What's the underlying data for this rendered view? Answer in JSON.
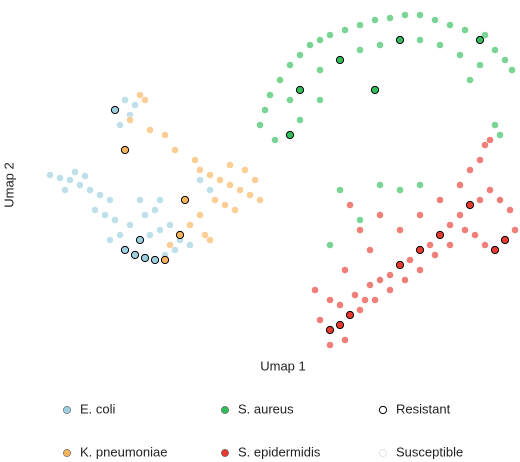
{
  "chart_data": {
    "type": "scatter",
    "xlabel": "Umap 1",
    "ylabel": "Umap 2",
    "xlim": [
      0,
      480
    ],
    "ylim": [
      0,
      355
    ],
    "series": [
      {
        "name": "E. coli",
        "color": "#9ccfe0",
        "x": [
          10,
          20,
          30,
          40,
          50,
          60,
          70,
          55,
          65,
          75,
          80,
          70,
          110,
          120,
          130,
          90,
          105,
          115,
          140,
          150,
          85,
          90,
          80,
          95,
          35,
          45,
          100,
          120,
          160,
          170,
          25,
          135,
          125
        ],
        "y": [
          180,
          177,
          175,
          170,
          165,
          160,
          155,
          145,
          140,
          135,
          120,
          115,
          120,
          125,
          130,
          130,
          140,
          145,
          115,
          110,
          255,
          240,
          230,
          250,
          183,
          179,
          155,
          155,
          175,
          165,
          165,
          105,
          100
        ],
        "resistant": {
          "x": [
            75,
            85,
            95,
            105,
            115,
            100
          ],
          "y": [
            245,
            105,
            100,
            97,
            95,
            115
          ]
        }
      },
      {
        "name": "K. pneumoniae",
        "color": "#f8b45c",
        "x": [
          160,
          170,
          180,
          190,
          200,
          210,
          175,
          185,
          195,
          205,
          215,
          220,
          160,
          150,
          130,
          165,
          110,
          105,
          100,
          90,
          125,
          135,
          155,
          190,
          170
        ],
        "y": [
          185,
          180,
          175,
          170,
          165,
          160,
          155,
          150,
          145,
          185,
          175,
          155,
          140,
          130,
          110,
          120,
          225,
          255,
          260,
          235,
          220,
          205,
          195,
          190,
          115
        ],
        "resistant": {
          "x": [
            85,
            145,
            125,
            140
          ],
          "y": [
            205,
            155,
            95,
            120
          ]
        }
      },
      {
        "name": "S. aureus",
        "color": "#33bd5a",
        "x": [
          220,
          225,
          230,
          240,
          250,
          260,
          270,
          280,
          290,
          305,
          320,
          335,
          350,
          365,
          380,
          395,
          410,
          425,
          445,
          455,
          465,
          472,
          250,
          280,
          320,
          340,
          380,
          400,
          420,
          440,
          430,
          235,
          260,
          280,
          340,
          360,
          380,
          320,
          290,
          300,
          460,
          455
        ],
        "y": [
          230,
          245,
          260,
          275,
          290,
          300,
          310,
          315,
          320,
          325,
          330,
          335,
          337,
          340,
          340,
          335,
          330,
          325,
          320,
          305,
          295,
          285,
          255,
          285,
          305,
          310,
          315,
          310,
          300,
          290,
          275,
          215,
          235,
          255,
          170,
          165,
          170,
          135,
          110,
          165,
          220,
          230
        ],
        "resistant": {
          "x": [
            250,
            260,
            300,
            360,
            440,
            335
          ],
          "y": [
            220,
            265,
            295,
            315,
            315,
            265
          ]
        }
      },
      {
        "name": "S. epidermidis",
        "color": "#e83a30",
        "x": [
          280,
          300,
          290,
          315,
          325,
          330,
          340,
          350,
          370,
          390,
          410,
          420,
          440,
          450,
          460,
          470,
          475,
          445,
          435,
          425,
          410,
          395,
          380,
          365,
          350,
          335,
          320,
          305,
          290,
          430,
          440,
          445,
          450,
          420,
          400,
          380,
          360,
          340,
          320,
          310,
          330,
          305,
          275
        ],
        "y": [
          35,
          50,
          55,
          60,
          55,
          70,
          75,
          80,
          95,
          110,
          130,
          140,
          155,
          165,
          155,
          145,
          125,
          110,
          120,
          125,
          110,
          100,
          85,
          75,
          65,
          55,
          45,
          15,
          10,
          185,
          195,
          210,
          215,
          170,
          155,
          140,
          125,
          140,
          125,
          150,
          105,
          85,
          65
        ],
        "resistant": {
          "x": [
            290,
            300,
            310,
            430,
            455,
            465,
            400,
            380,
            360
          ],
          "y": [
            25,
            30,
            40,
            150,
            105,
            115,
            120,
            105,
            90
          ]
        }
      }
    ],
    "outline_legend": [
      {
        "name": "Resistant",
        "stroke": "#000000"
      },
      {
        "name": "Susceptible",
        "stroke": "#e6e6e6"
      }
    ]
  }
}
